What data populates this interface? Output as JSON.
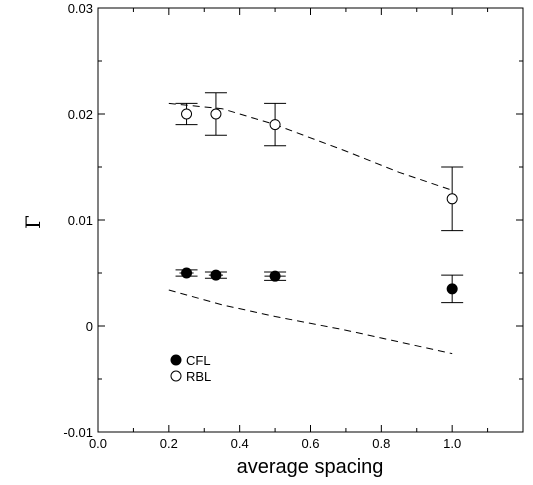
{
  "chart_data": {
    "type": "scatter",
    "xlabel": "average spacing",
    "ylabel": "Γ",
    "xlim": [
      0.0,
      1.2
    ],
    "ylim": [
      -0.01,
      0.03
    ],
    "xticks": [
      0.0,
      0.2,
      0.4,
      0.6,
      0.8,
      1.0
    ],
    "xtick_labels": [
      "0.0",
      "0.2",
      "0.4",
      "0.6",
      "0.8",
      "1.0"
    ],
    "yticks": [
      -0.01,
      0,
      0.01,
      0.02,
      0.03
    ],
    "ytick_labels": [
      "-0.01",
      "0",
      "0.01",
      "0.02",
      "0.03"
    ],
    "grid": false,
    "legend_position": "bottom-left",
    "series": [
      {
        "name": "CFL",
        "marker": "filled-circle",
        "points": [
          {
            "x": 0.25,
            "y": 0.005,
            "yerr": 0.0003,
            "xerr": 0.02
          },
          {
            "x": 0.333,
            "y": 0.0048,
            "yerr": 0.0003,
            "xerr": 0.02
          },
          {
            "x": 0.5,
            "y": 0.0047,
            "yerr": 0.0004,
            "xerr": 0.03
          },
          {
            "x": 1.0,
            "y": 0.0035,
            "yerr": 0.0013
          }
        ]
      },
      {
        "name": "RBL",
        "marker": "open-circle",
        "points": [
          {
            "x": 0.25,
            "y": 0.02,
            "yerr": 0.001
          },
          {
            "x": 0.333,
            "y": 0.02,
            "yerr": 0.002
          },
          {
            "x": 0.5,
            "y": 0.019,
            "yerr": 0.002
          },
          {
            "x": 1.0,
            "y": 0.012,
            "yerr": 0.003
          }
        ]
      }
    ],
    "dashed_curves": [
      {
        "points": [
          [
            0.2,
            0.021
          ],
          [
            0.35,
            0.0205
          ],
          [
            0.5,
            0.019
          ],
          [
            0.7,
            0.0165
          ],
          [
            0.85,
            0.0145
          ],
          [
            1.0,
            0.0128
          ]
        ]
      },
      {
        "points": [
          [
            0.2,
            0.0034
          ],
          [
            0.35,
            0.002
          ],
          [
            0.5,
            0.0009
          ],
          [
            0.7,
            -0.0004
          ],
          [
            0.85,
            -0.0015
          ],
          [
            1.0,
            -0.0026
          ]
        ]
      }
    ]
  }
}
